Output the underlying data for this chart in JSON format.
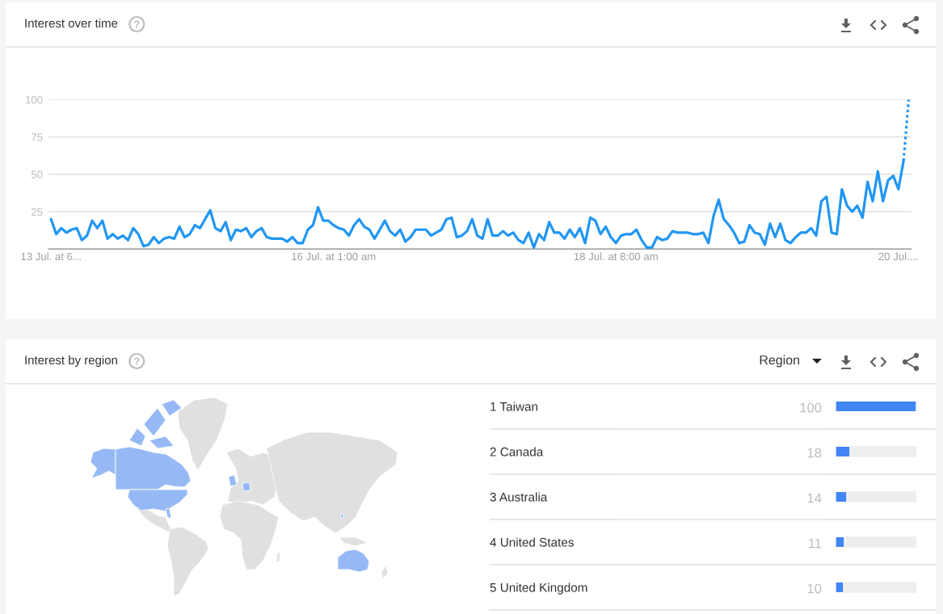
{
  "chart_data": [
    {
      "type": "line",
      "title": "Interest over time",
      "line_style": "solid",
      "grid": "y",
      "categories": [
        "13 Jul. at 6...",
        null,
        null,
        null,
        null,
        null,
        null,
        null,
        null,
        null,
        null,
        null,
        null,
        null,
        null,
        null,
        null,
        null,
        null,
        null,
        null,
        null,
        null,
        null,
        null,
        null,
        null,
        null,
        null,
        null,
        null,
        null,
        null,
        null,
        null,
        null,
        null,
        null,
        null,
        null,
        null,
        null,
        null,
        null,
        null,
        null,
        null,
        null,
        null,
        null,
        null,
        null,
        null,
        null,
        null,
        "16 Jul. at 1:00 am",
        null,
        null,
        null,
        null,
        null,
        null,
        null,
        null,
        null,
        null,
        null,
        null,
        null,
        null,
        null,
        null,
        null,
        null,
        null,
        null,
        null,
        null,
        null,
        null,
        null,
        null,
        null,
        null,
        null,
        null,
        null,
        null,
        null,
        null,
        null,
        null,
        null,
        null,
        null,
        null,
        null,
        null,
        null,
        null,
        null,
        null,
        null,
        null,
        null,
        null,
        null,
        null,
        null,
        null,
        "18 Jul. at 8:00 am",
        null,
        null,
        null,
        null,
        null,
        null,
        null,
        null,
        null,
        null,
        null,
        null,
        null,
        null,
        null,
        null,
        null,
        null,
        null,
        null,
        null,
        null,
        null,
        null,
        null,
        null,
        null,
        null,
        null,
        null,
        null,
        null,
        null,
        null,
        null,
        null,
        null,
        null,
        null,
        null,
        null,
        null,
        null,
        null,
        null,
        null,
        null,
        null,
        null,
        null,
        null,
        null,
        null,
        null,
        "20 Jul....",
        null,
        null
      ],
      "series": [
        {
          "color": "#2196f3",
          "values": [
            20,
            10,
            14,
            11,
            13,
            14,
            6,
            9,
            19,
            14,
            19,
            7,
            10,
            7,
            9,
            6,
            14,
            10,
            2,
            3,
            8,
            4,
            7,
            8,
            7,
            15,
            8,
            10,
            16,
            14,
            20,
            26,
            14,
            12,
            18,
            6,
            13,
            12,
            14,
            8,
            12,
            14,
            8,
            7,
            7,
            7,
            5,
            8,
            4,
            4,
            13,
            16,
            28,
            19,
            19,
            16,
            14,
            13,
            9,
            16,
            20,
            15,
            13,
            7,
            13,
            19,
            12,
            9,
            13,
            5,
            8,
            13,
            13,
            13,
            9,
            11,
            13,
            20,
            21,
            8,
            9,
            12,
            20,
            9,
            7,
            20,
            9,
            9,
            12,
            9,
            11,
            6,
            4,
            11,
            1,
            10,
            6,
            18,
            11,
            11,
            7,
            13,
            8,
            14,
            4,
            21,
            19,
            10,
            15,
            8,
            4,
            9,
            10,
            10,
            13,
            6,
            1,
            1,
            8,
            6,
            7,
            12,
            11,
            11,
            11,
            10,
            10,
            11,
            4,
            22,
            33,
            20,
            16,
            11,
            4,
            5,
            16,
            11,
            10,
            3,
            17,
            8,
            17,
            6,
            4,
            8,
            11,
            11,
            14,
            9,
            32,
            35,
            11,
            10,
            40,
            29,
            25,
            29,
            21,
            45,
            32,
            52,
            32,
            46,
            49,
            40,
            59,
            null
          ]
        },
        {
          "color": "#2196f3",
          "line_style": "dotted",
          "values": [
            null,
            null,
            null,
            null,
            null,
            null,
            null,
            null,
            null,
            null,
            null,
            null,
            null,
            null,
            null,
            null,
            null,
            null,
            null,
            null,
            null,
            null,
            null,
            null,
            null,
            null,
            null,
            null,
            null,
            null,
            null,
            null,
            null,
            null,
            null,
            null,
            null,
            null,
            null,
            null,
            null,
            null,
            null,
            null,
            null,
            null,
            null,
            null,
            null,
            null,
            null,
            null,
            null,
            null,
            null,
            null,
            null,
            null,
            null,
            null,
            null,
            null,
            null,
            null,
            null,
            null,
            null,
            null,
            null,
            null,
            null,
            null,
            null,
            null,
            null,
            null,
            null,
            null,
            null,
            null,
            null,
            null,
            null,
            null,
            null,
            null,
            null,
            null,
            null,
            null,
            null,
            null,
            null,
            null,
            null,
            null,
            null,
            null,
            null,
            null,
            null,
            null,
            null,
            null,
            null,
            null,
            null,
            null,
            null,
            null,
            null,
            null,
            null,
            null,
            null,
            null,
            null,
            null,
            null,
            null,
            null,
            null,
            null,
            null,
            null,
            null,
            null,
            null,
            null,
            null,
            null,
            null,
            null,
            null,
            null,
            null,
            null,
            null,
            null,
            null,
            null,
            null,
            null,
            null,
            null,
            null,
            null,
            null,
            null,
            null,
            null,
            null,
            null,
            null,
            null,
            null,
            null,
            null,
            null,
            null,
            null,
            null,
            null,
            null,
            null,
            null,
            59,
            100
          ]
        }
      ],
      "ylim": [
        0,
        100
      ],
      "yticks": [
        {
          "value": 0,
          "label": null
        },
        25,
        50,
        75,
        100
      ]
    },
    {
      "type": "other",
      "title": "Interest by region"
    },
    {
      "type": "bar",
      "orientation": "horizontal",
      "categories": [
        "1 Taiwan",
        "2 Canada",
        "3 Australia",
        "4 United States",
        "5 United Kingdom"
      ],
      "values": [
        100,
        18,
        14,
        11,
        10
      ],
      "color": "#4285f4",
      "xlim": [
        0,
        100
      ],
      "data_labels": true,
      "tick_labels": "y",
      "annotations": [
        "Region"
      ]
    }
  ]
}
